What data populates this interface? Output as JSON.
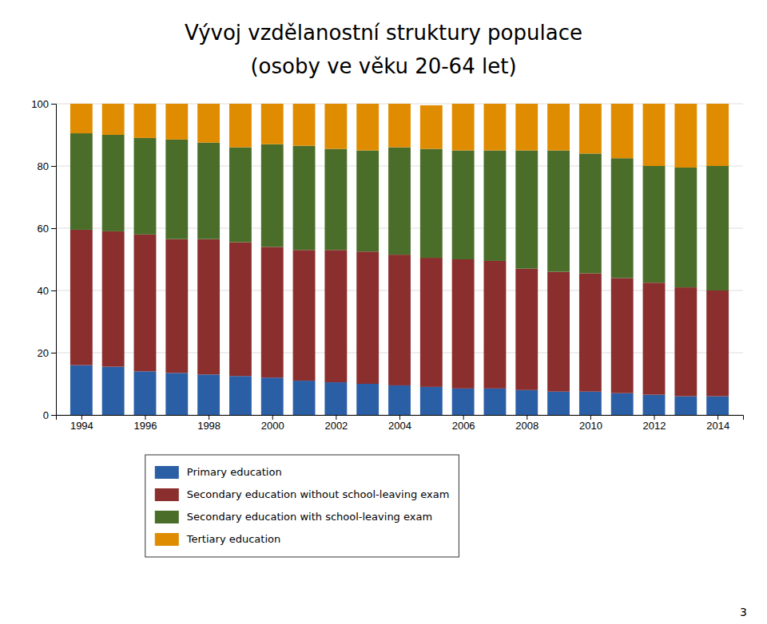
{
  "chart_data": {
    "type": "bar",
    "stacked": true,
    "title": "Vývoj vzdělanostní struktury populace",
    "subtitle": "(osoby ve věku 20-64 let)",
    "x": [
      1994,
      1995,
      1996,
      1997,
      1998,
      1999,
      2000,
      2001,
      2002,
      2003,
      2004,
      2005,
      2006,
      2007,
      2008,
      2009,
      2010,
      2011,
      2012,
      2013,
      2014
    ],
    "xlim": [
      1993.2,
      2014.8
    ],
    "xticks": [
      1994,
      1996,
      1998,
      2000,
      2002,
      2004,
      2006,
      2008,
      2010,
      2012,
      2014
    ],
    "ylim": [
      0,
      100
    ],
    "yticks": [
      0,
      20,
      40,
      60,
      80,
      100
    ],
    "grid": true,
    "legend": "bottom",
    "series": [
      {
        "name": "Primary education",
        "color": "#2b5fa5",
        "values": [
          16,
          15.5,
          14,
          13.5,
          13,
          12.5,
          12,
          11,
          10.5,
          10,
          9.5,
          9,
          8.5,
          8.5,
          8,
          7.5,
          7.5,
          7,
          6.5,
          6,
          6
        ]
      },
      {
        "name": "Secondary education without school-leaving exam",
        "color": "#8b2e2e",
        "values": [
          43.5,
          43.5,
          44,
          43,
          43.5,
          43,
          42,
          42,
          42.5,
          42.5,
          42,
          41.5,
          41.5,
          41,
          39,
          38.5,
          38,
          37,
          36,
          35,
          34
        ]
      },
      {
        "name": "Secondary education with school-leaving exam",
        "color": "#4a6e2a",
        "values": [
          31,
          31,
          31,
          32,
          31,
          30.5,
          33,
          33.5,
          32.5,
          32.5,
          34.5,
          35,
          35,
          35.5,
          38,
          39,
          38.5,
          38.5,
          37.5,
          38.5,
          40
        ]
      },
      {
        "name": "Tertiary education",
        "color": "#e08c00",
        "values": [
          9.5,
          10,
          11,
          11.5,
          12.5,
          14,
          13,
          13.5,
          14.5,
          15,
          14,
          14,
          15,
          15,
          15,
          15,
          16,
          17.5,
          20,
          20.5,
          20
        ]
      }
    ],
    "annotations": [
      "3"
    ]
  }
}
